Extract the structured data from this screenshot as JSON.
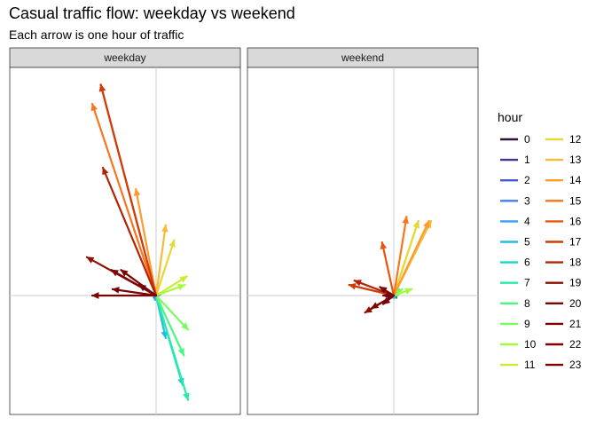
{
  "chart_data": {
    "type": "vector-field",
    "title": "Casual traffic flow: weekday vs weekend",
    "subtitle": "Each arrow is one hour of traffic",
    "facets": [
      "weekday",
      "weekend"
    ],
    "legend": {
      "title": "hour",
      "placement": "right",
      "columns": 2
    },
    "axes": {
      "x_range": [
        -1,
        1
      ],
      "y_range": [
        -1,
        1
      ],
      "grid": "origin-lines-only"
    },
    "hours": [
      0,
      1,
      2,
      3,
      4,
      5,
      6,
      7,
      8,
      9,
      10,
      11,
      12,
      13,
      14,
      15,
      16,
      17,
      18,
      19,
      20,
      21,
      22,
      23
    ],
    "hour_colors": [
      "#30123b",
      "#3e378f",
      "#4559cb",
      "#467cf5",
      "#3a9cfb",
      "#25bde6",
      "#18d6cb",
      "#26eba8",
      "#48f882",
      "#76fe5f",
      "#a4fc3c",
      "#c8ee34",
      "#e7d738",
      "#f8ba39",
      "#fe9b2d",
      "#f9751d",
      "#e8560e",
      "#d03c07",
      "#b12303",
      "#8c1101",
      "#7a0403",
      "#7a0403",
      "#7a0403",
      "#7a0403"
    ],
    "series": [
      {
        "name": "weekday",
        "vectors": [
          {
            "hour": 0,
            "dx": -0.16,
            "dy": 0.05
          },
          {
            "hour": 1,
            "dx": -0.02,
            "dy": -0.01
          },
          {
            "hour": 2,
            "dx": -0.02,
            "dy": -0.01
          },
          {
            "hour": 3,
            "dx": -0.01,
            "dy": -0.02
          },
          {
            "hour": 4,
            "dx": -0.01,
            "dy": -0.02
          },
          {
            "hour": 5,
            "dx": 0.09,
            "dy": -0.2
          },
          {
            "hour": 6,
            "dx": 0.25,
            "dy": -0.42
          },
          {
            "hour": 7,
            "dx": 0.3,
            "dy": -0.49
          },
          {
            "hour": 8,
            "dx": 0.26,
            "dy": -0.28
          },
          {
            "hour": 9,
            "dx": 0.3,
            "dy": -0.16
          },
          {
            "hour": 10,
            "dx": 0.27,
            "dy": 0.05
          },
          {
            "hour": 11,
            "dx": 0.29,
            "dy": 0.09
          },
          {
            "hour": 12,
            "dx": 0.17,
            "dy": 0.26
          },
          {
            "hour": 13,
            "dx": 0.09,
            "dy": 0.33
          },
          {
            "hour": 14,
            "dx": -0.19,
            "dy": 0.5
          },
          {
            "hour": 15,
            "dx": -0.6,
            "dy": 0.9
          },
          {
            "hour": 16,
            "dx": -0.52,
            "dy": 0.99
          },
          {
            "hour": 17,
            "dx": -0.52,
            "dy": 0.99
          },
          {
            "hour": 18,
            "dx": -0.5,
            "dy": 0.6
          },
          {
            "hour": 19,
            "dx": -0.65,
            "dy": 0.18
          },
          {
            "hour": 20,
            "dx": -0.6,
            "dy": 0.0
          },
          {
            "hour": 21,
            "dx": -0.41,
            "dy": 0.03
          },
          {
            "hour": 22,
            "dx": -0.33,
            "dy": 0.12
          },
          {
            "hour": 23,
            "dx": -0.42,
            "dy": 0.12
          }
        ]
      },
      {
        "name": "weekend",
        "vectors": [
          {
            "hour": 0,
            "dx": -0.05,
            "dy": 0.0
          },
          {
            "hour": 1,
            "dx": -0.03,
            "dy": 0.0
          },
          {
            "hour": 2,
            "dx": -0.02,
            "dy": -0.01
          },
          {
            "hour": 3,
            "dx": -0.01,
            "dy": -0.01
          },
          {
            "hour": 4,
            "dx": -0.01,
            "dy": -0.01
          },
          {
            "hour": 5,
            "dx": 0.01,
            "dy": -0.01
          },
          {
            "hour": 6,
            "dx": 0.01,
            "dy": -0.01
          },
          {
            "hour": 7,
            "dx": 0.03,
            "dy": 0.0
          },
          {
            "hour": 8,
            "dx": 0.05,
            "dy": 0.03
          },
          {
            "hour": 9,
            "dx": 0.08,
            "dy": 0.03
          },
          {
            "hour": 10,
            "dx": 0.17,
            "dy": 0.03
          },
          {
            "hour": 11,
            "dx": 0.23,
            "dy": 0.35
          },
          {
            "hour": 12,
            "dx": 0.23,
            "dy": 0.35
          },
          {
            "hour": 13,
            "dx": 0.35,
            "dy": 0.35
          },
          {
            "hour": 14,
            "dx": 0.33,
            "dy": 0.35
          },
          {
            "hour": 15,
            "dx": 0.12,
            "dy": 0.37
          },
          {
            "hour": 16,
            "dx": -0.11,
            "dy": 0.25
          },
          {
            "hour": 17,
            "dx": -0.42,
            "dy": 0.05
          },
          {
            "hour": 18,
            "dx": -0.37,
            "dy": 0.07
          },
          {
            "hour": 19,
            "dx": -0.27,
            "dy": -0.08
          },
          {
            "hour": 20,
            "dx": -0.21,
            "dy": -0.06
          },
          {
            "hour": 21,
            "dx": -0.1,
            "dy": -0.04
          },
          {
            "hour": 22,
            "dx": -0.1,
            "dy": 0.0
          },
          {
            "hour": 23,
            "dx": -0.13,
            "dy": 0.04
          }
        ]
      }
    ]
  }
}
